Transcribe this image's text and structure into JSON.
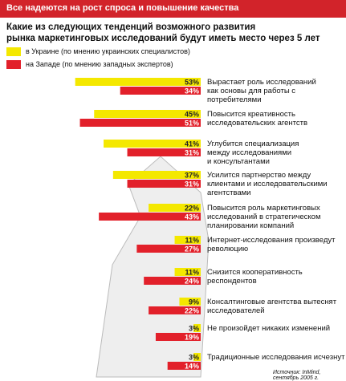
{
  "chart_data": {
    "type": "bar",
    "orientation": "horizontal",
    "header": "Все надеются на рост спроса и повышение качества",
    "title": "Какие из следующих тенденций возможного развития\nрынка маркетинговых исследований будут иметь место через 5 лет",
    "categories": [
      "Вырастает роль исследований\nкак основы для работы с\nпотребителями",
      "Повысится креативность\nисследовательских агентств",
      "Углубится специализация\nмежду исследованиями\nи консультантами",
      "Усилится партнерство между\nклиентами и исследовательскими\nагентствами",
      "Повысится роль маркетинговых\nисследований в стратегическом\nпланировании компаний",
      "Интернет-исследования произведут\nреволюцию",
      "Снизится кооперативность\nреспондентов",
      "Консалтинговые агентства вытеснят\nисследователей",
      "Не произойдет никаких изменений",
      "Традиционные исследования исчезнут"
    ],
    "series": [
      {
        "name": "в Украине (по мнению украинских специалистов)",
        "color": "#f4e800",
        "values": [
          53,
          45,
          41,
          37,
          22,
          11,
          11,
          9,
          3,
          3
        ],
        "value_labels": [
          "53%",
          "45%",
          "41%",
          "37%",
          "22%",
          "11%",
          "11%",
          "9%",
          "3%",
          "3%"
        ]
      },
      {
        "name": "на Западе (по мнению западных экспертов)",
        "color": "#e2202a",
        "values": [
          34,
          51,
          31,
          31,
          43,
          27,
          24,
          22,
          19,
          14
        ],
        "value_labels": [
          "34%",
          "51%",
          "31%",
          "31%",
          "43%",
          "27%",
          "24%",
          "22%",
          "19%",
          "14%"
        ]
      }
    ],
    "source": "Источник: InMind, сентябрь 2005 г."
  }
}
